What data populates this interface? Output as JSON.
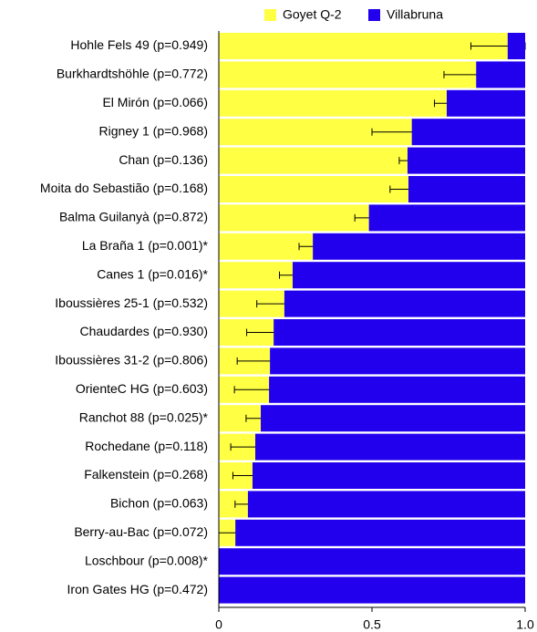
{
  "chart_data": {
    "type": "bar",
    "orientation": "horizontal",
    "stacked": true,
    "categories": [
      "Hohle Fels 49 (p=0.949)",
      "Burkhardtshöhle (p=0.772)",
      "El Mirón (p=0.066)",
      "Rigney 1 (p=0.968)",
      "Chan (p=0.136)",
      "Moita do Sebastião (p=0.168)",
      "Balma Guilanyà (p=0.872)",
      "La Braña 1 (p=0.001)*",
      "Canes 1 (p=0.016)*",
      "Iboussières 25-1 (p=0.532)",
      "Chaudardes (p=0.930)",
      "Iboussières 31-2 (p=0.806)",
      "OrienteC HG (p=0.603)",
      "Ranchot 88 (p=0.025)*",
      "Rochedane (p=0.118)",
      "Falkenstein (p=0.268)",
      "Bichon (p=0.063)",
      "Berry-au-Bac (p=0.072)",
      "Loschbour (p=0.008)*",
      "Iron Gates HG (p=0.472)"
    ],
    "series": [
      {
        "name": "Goyet Q-2",
        "color": "#ffff44",
        "values": [
          0.943,
          0.84,
          0.744,
          0.63,
          0.616,
          0.619,
          0.49,
          0.307,
          0.241,
          0.214,
          0.179,
          0.167,
          0.164,
          0.137,
          0.119,
          0.11,
          0.095,
          0.054,
          0,
          0
        ],
        "errors": [
          0.12,
          0.105,
          0.04,
          0.13,
          0.027,
          0.06,
          0.046,
          0.045,
          0.043,
          0.09,
          0.088,
          0.107,
          0.113,
          0.048,
          0.08,
          0.064,
          0.042,
          0.07,
          0,
          0
        ]
      },
      {
        "name": "Villabruna",
        "color": "#2200ee",
        "values": [
          0.057,
          0.16,
          0.256,
          0.37,
          0.384,
          0.381,
          0.51,
          0.693,
          0.759,
          0.786,
          0.821,
          0.833,
          0.836,
          0.863,
          0.881,
          0.89,
          0.905,
          0.946,
          1,
          1
        ]
      }
    ],
    "xlim": [
      0,
      1
    ],
    "xticks": [
      0,
      0.5,
      {
        "value": 1,
        "label": "1.0"
      }
    ],
    "legend": "top"
  }
}
